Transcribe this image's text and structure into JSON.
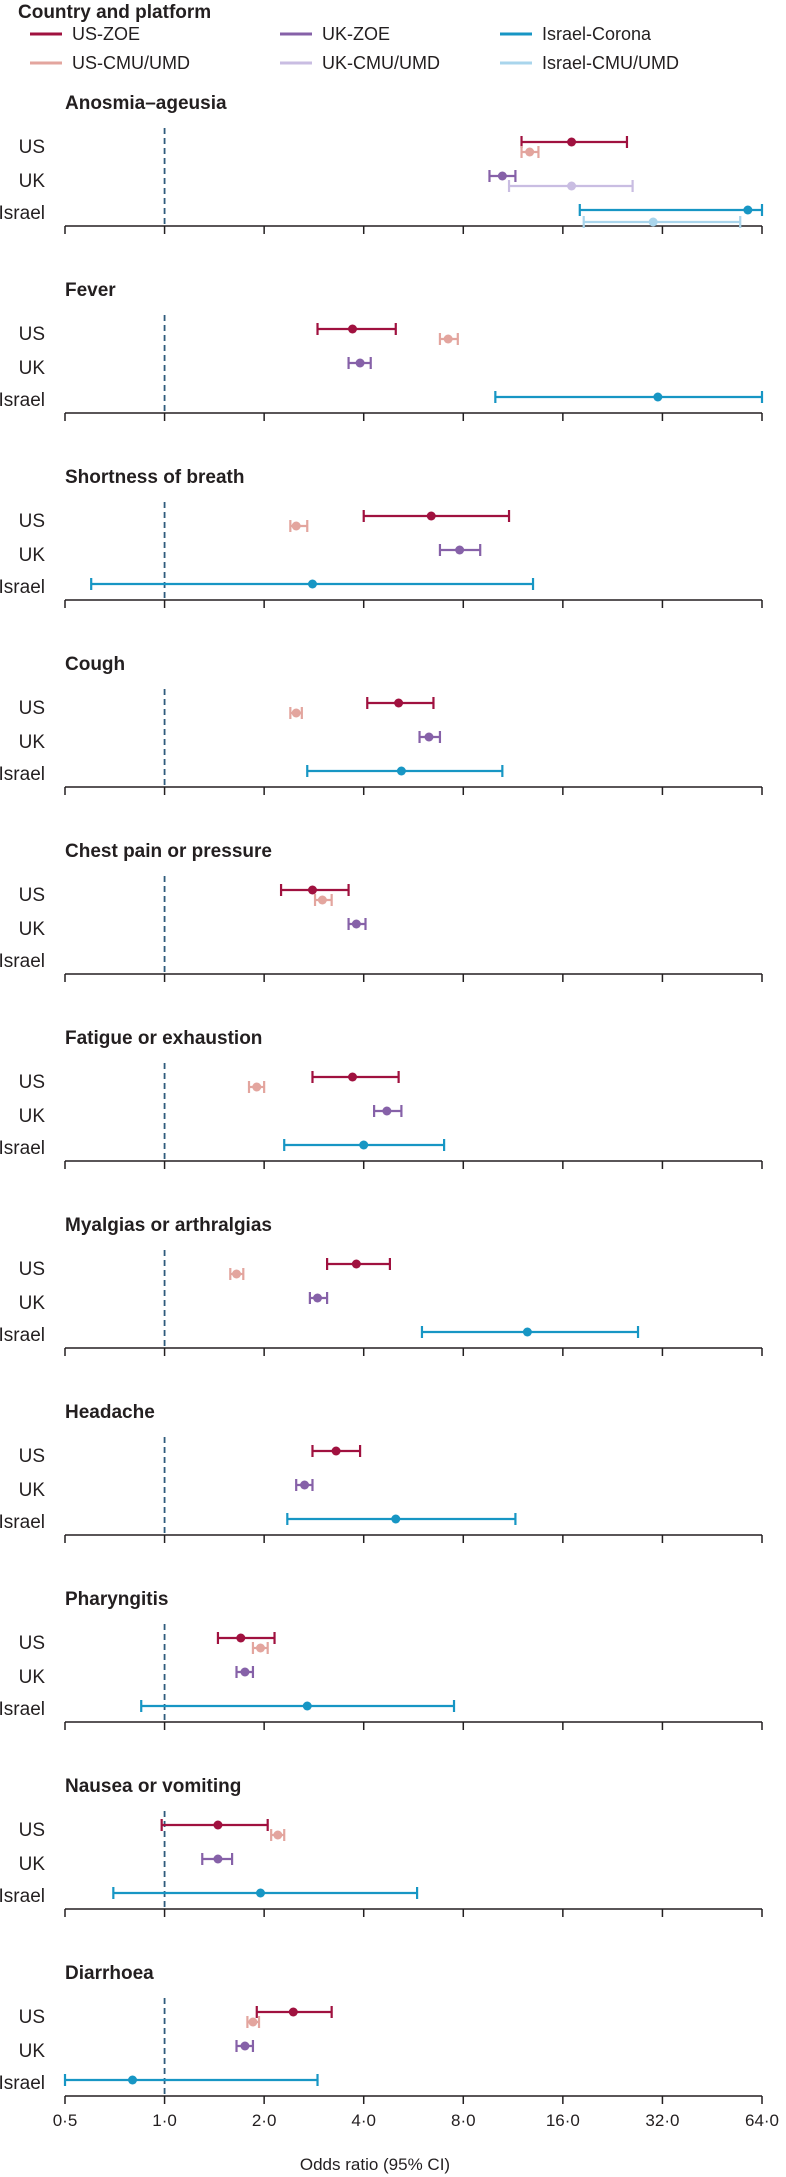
{
  "chart_data": {
    "type": "forest",
    "legend_title": "Country and platform",
    "series": [
      {
        "key": "us_zoe",
        "name": "US-ZOE",
        "color": "#a0113f"
      },
      {
        "key": "uk_zoe",
        "name": "UK-ZOE",
        "color": "#8661a8"
      },
      {
        "key": "il_corona",
        "name": "Israel-Corona",
        "color": "#1796c4"
      },
      {
        "key": "us_cmu",
        "name": "US-CMU/UMD",
        "color": "#e3a59e"
      },
      {
        "key": "uk_cmu",
        "name": "UK-CMU/UMD",
        "color": "#c9bde2"
      },
      {
        "key": "il_cmu",
        "name": "Israel-CMU/UMD",
        "color": "#a9d5ec"
      }
    ],
    "countries": [
      "US",
      "UK",
      "Israel"
    ],
    "xlabel": "Odds ratio (95% CI)",
    "xscale": "log2",
    "xlim": [
      0.5,
      64.0
    ],
    "xticks": [
      0.5,
      1.0,
      2.0,
      4.0,
      8.0,
      16.0,
      32.0,
      64.0
    ],
    "xtick_labels": [
      "0·5",
      "1·0",
      "2·0",
      "4·0",
      "8·0",
      "16·0",
      "32·0",
      "64·0"
    ],
    "reference_line": 1.0,
    "panels": [
      {
        "title": "Anosmia–ageusia",
        "estimates": [
          {
            "series": "us_zoe",
            "country": "US",
            "or": 17.0,
            "lo": 12.0,
            "hi": 25.0
          },
          {
            "series": "us_cmu",
            "country": "US",
            "or": 12.7,
            "lo": 12.0,
            "hi": 13.5
          },
          {
            "series": "uk_zoe",
            "country": "UK",
            "or": 10.5,
            "lo": 9.6,
            "hi": 11.5
          },
          {
            "series": "uk_cmu",
            "country": "UK",
            "or": 17.0,
            "lo": 11.0,
            "hi": 26.0
          },
          {
            "series": "il_corona",
            "country": "Israel",
            "or": 58.0,
            "lo": 18.0,
            "hi": 70.0
          },
          {
            "series": "il_cmu",
            "country": "Israel",
            "or": 30.0,
            "lo": 18.5,
            "hi": 55.0
          }
        ]
      },
      {
        "title": "Fever",
        "estimates": [
          {
            "series": "us_zoe",
            "country": "US",
            "or": 3.7,
            "lo": 2.9,
            "hi": 5.0
          },
          {
            "series": "us_cmu",
            "country": "US",
            "or": 7.2,
            "lo": 6.8,
            "hi": 7.7
          },
          {
            "series": "uk_zoe",
            "country": "UK",
            "or": 3.9,
            "lo": 3.6,
            "hi": 4.2
          },
          {
            "series": "il_corona",
            "country": "Israel",
            "or": 31.0,
            "lo": 10.0,
            "hi": 70.0
          }
        ]
      },
      {
        "title": "Shortness of breath",
        "estimates": [
          {
            "series": "us_zoe",
            "country": "US",
            "or": 6.4,
            "lo": 4.0,
            "hi": 11.0
          },
          {
            "series": "us_cmu",
            "country": "US",
            "or": 2.5,
            "lo": 2.4,
            "hi": 2.7
          },
          {
            "series": "uk_zoe",
            "country": "UK",
            "or": 7.8,
            "lo": 6.8,
            "hi": 9.0
          },
          {
            "series": "il_corona",
            "country": "Israel",
            "or": 2.8,
            "lo": 0.6,
            "hi": 13.0
          }
        ]
      },
      {
        "title": "Cough",
        "estimates": [
          {
            "series": "us_zoe",
            "country": "US",
            "or": 5.1,
            "lo": 4.1,
            "hi": 6.5
          },
          {
            "series": "us_cmu",
            "country": "US",
            "or": 2.5,
            "lo": 2.4,
            "hi": 2.6
          },
          {
            "series": "uk_zoe",
            "country": "UK",
            "or": 6.3,
            "lo": 5.9,
            "hi": 6.8
          },
          {
            "series": "il_corona",
            "country": "Israel",
            "or": 5.2,
            "lo": 2.7,
            "hi": 10.5
          }
        ]
      },
      {
        "title": "Chest pain or pressure",
        "estimates": [
          {
            "series": "us_zoe",
            "country": "US",
            "or": 2.8,
            "lo": 2.25,
            "hi": 3.6
          },
          {
            "series": "us_cmu",
            "country": "US",
            "or": 3.0,
            "lo": 2.85,
            "hi": 3.2
          },
          {
            "series": "uk_zoe",
            "country": "UK",
            "or": 3.8,
            "lo": 3.6,
            "hi": 4.05
          }
        ]
      },
      {
        "title": "Fatigue or exhaustion",
        "estimates": [
          {
            "series": "us_zoe",
            "country": "US",
            "or": 3.7,
            "lo": 2.8,
            "hi": 5.1
          },
          {
            "series": "us_cmu",
            "country": "US",
            "or": 1.9,
            "lo": 1.8,
            "hi": 2.0
          },
          {
            "series": "uk_zoe",
            "country": "UK",
            "or": 4.7,
            "lo": 4.3,
            "hi": 5.2
          },
          {
            "series": "il_corona",
            "country": "Israel",
            "or": 4.0,
            "lo": 2.3,
            "hi": 7.0
          }
        ]
      },
      {
        "title": "Myalgias or arthralgias",
        "estimates": [
          {
            "series": "us_zoe",
            "country": "US",
            "or": 3.8,
            "lo": 3.1,
            "hi": 4.8
          },
          {
            "series": "us_cmu",
            "country": "US",
            "or": 1.65,
            "lo": 1.58,
            "hi": 1.73
          },
          {
            "series": "uk_zoe",
            "country": "UK",
            "or": 2.9,
            "lo": 2.75,
            "hi": 3.1
          },
          {
            "series": "il_corona",
            "country": "Israel",
            "or": 12.5,
            "lo": 6.0,
            "hi": 27.0
          }
        ]
      },
      {
        "title": "Headache",
        "estimates": [
          {
            "series": "us_zoe",
            "country": "US",
            "or": 3.3,
            "lo": 2.8,
            "hi": 3.9
          },
          {
            "series": "uk_zoe",
            "country": "UK",
            "or": 2.65,
            "lo": 2.5,
            "hi": 2.8
          },
          {
            "series": "il_corona",
            "country": "Israel",
            "or": 5.0,
            "lo": 2.35,
            "hi": 11.5
          }
        ]
      },
      {
        "title": "Pharyngitis",
        "estimates": [
          {
            "series": "us_zoe",
            "country": "US",
            "or": 1.7,
            "lo": 1.45,
            "hi": 2.15
          },
          {
            "series": "us_cmu",
            "country": "US",
            "or": 1.95,
            "lo": 1.85,
            "hi": 2.05
          },
          {
            "series": "uk_zoe",
            "country": "UK",
            "or": 1.75,
            "lo": 1.65,
            "hi": 1.85
          },
          {
            "series": "il_corona",
            "country": "Israel",
            "or": 2.7,
            "lo": 0.85,
            "hi": 7.5
          }
        ]
      },
      {
        "title": "Nausea or vomiting",
        "estimates": [
          {
            "series": "us_zoe",
            "country": "US",
            "or": 1.45,
            "lo": 0.98,
            "hi": 2.05
          },
          {
            "series": "us_cmu",
            "country": "US",
            "or": 2.2,
            "lo": 2.1,
            "hi": 2.3
          },
          {
            "series": "uk_zoe",
            "country": "UK",
            "or": 1.45,
            "lo": 1.3,
            "hi": 1.6
          },
          {
            "series": "il_corona",
            "country": "Israel",
            "or": 1.95,
            "lo": 0.7,
            "hi": 5.8
          }
        ]
      },
      {
        "title": "Diarrhoea",
        "estimates": [
          {
            "series": "us_zoe",
            "country": "US",
            "or": 2.45,
            "lo": 1.9,
            "hi": 3.2
          },
          {
            "series": "us_cmu",
            "country": "US",
            "or": 1.85,
            "lo": 1.78,
            "hi": 1.93
          },
          {
            "series": "uk_zoe",
            "country": "UK",
            "or": 1.75,
            "lo": 1.65,
            "hi": 1.85
          },
          {
            "series": "il_corona",
            "country": "Israel",
            "or": 0.8,
            "lo": 0.5,
            "hi": 2.9
          }
        ]
      }
    ]
  }
}
